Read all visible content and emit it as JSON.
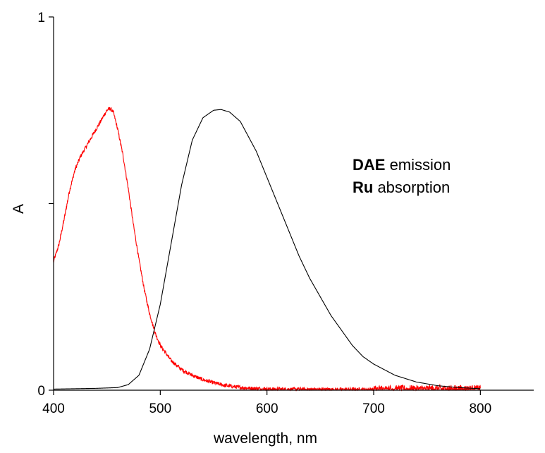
{
  "chart_data": {
    "type": "line",
    "title": "",
    "xlabel": "wavelength, nm",
    "ylabel": "A",
    "xlim": [
      400,
      850
    ],
    "ylim": [
      0,
      1
    ],
    "x_ticks": [
      {
        "value": 400,
        "label": "400"
      },
      {
        "value": 500,
        "label": "500"
      },
      {
        "value": 600,
        "label": "600"
      },
      {
        "value": 700,
        "label": "700"
      },
      {
        "value": 800,
        "label": "800"
      }
    ],
    "y_ticks": [
      {
        "value": 0,
        "label": "0"
      },
      {
        "value": 0.5,
        "label": ""
      },
      {
        "value": 1,
        "label": "1"
      }
    ],
    "grid": false,
    "legend": {
      "placement": "center-right",
      "entries": [
        {
          "bold": "DAE",
          "text": " emission"
        },
        {
          "bold": "Ru",
          "text": " absorption"
        }
      ]
    },
    "series": [
      {
        "color": "#ff0000",
        "noise": 0.005,
        "x": [
          400,
          405,
          410,
          415,
          420,
          425,
          430,
          435,
          440,
          445,
          450,
          453,
          456,
          460,
          465,
          470,
          475,
          480,
          485,
          490,
          495,
          500,
          510,
          520,
          530,
          540,
          550,
          560,
          570,
          580,
          600,
          650,
          700,
          750,
          800
        ],
        "y": [
          0.345,
          0.39,
          0.46,
          0.535,
          0.59,
          0.625,
          0.65,
          0.675,
          0.7,
          0.725,
          0.75,
          0.755,
          0.745,
          0.7,
          0.63,
          0.54,
          0.44,
          0.35,
          0.27,
          0.205,
          0.155,
          0.12,
          0.08,
          0.055,
          0.04,
          0.028,
          0.02,
          0.013,
          0.009,
          0.006,
          0.003,
          0.002,
          0.002,
          0.003,
          0.003
        ]
      },
      {
        "color": "#000000",
        "noise": 0,
        "x": [
          400,
          420,
          440,
          460,
          470,
          480,
          490,
          500,
          510,
          520,
          530,
          540,
          550,
          557,
          565,
          575,
          590,
          600,
          610,
          620,
          630,
          640,
          650,
          660,
          670,
          680,
          690,
          700,
          720,
          740,
          760,
          780,
          800
        ],
        "y": [
          0.003,
          0.004,
          0.005,
          0.007,
          0.015,
          0.04,
          0.11,
          0.23,
          0.39,
          0.55,
          0.67,
          0.73,
          0.75,
          0.752,
          0.745,
          0.72,
          0.64,
          0.57,
          0.5,
          0.43,
          0.36,
          0.3,
          0.25,
          0.2,
          0.16,
          0.12,
          0.09,
          0.07,
          0.04,
          0.022,
          0.012,
          0.007,
          0.004
        ]
      }
    ]
  }
}
